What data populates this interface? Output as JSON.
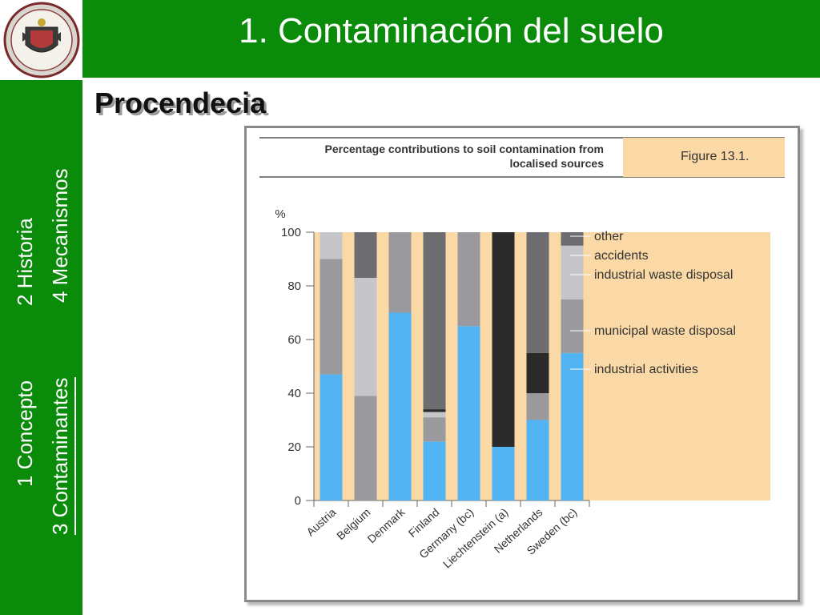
{
  "slide": {
    "title": "1.  Contaminación del suelo",
    "subtitle": "Procendecia"
  },
  "nav": {
    "items": [
      {
        "label": "1 Concepto",
        "active": false
      },
      {
        "label": "2  Historia",
        "active": false
      },
      {
        "label": "3 Contaminantes",
        "active": true
      },
      {
        "label": "4  Mecanismos",
        "active": false
      }
    ]
  },
  "colors": {
    "green": "#0a8c0a",
    "panel": "#fbd9a6",
    "industrial_activities": "#52b4f2",
    "municipal_waste_disposal": "#9a9a9e",
    "industrial_waste_disposal": "#c6c6ca",
    "accidents": "#2a2a2a",
    "other": "#6d6d71"
  },
  "logo": {
    "name": "university-crest-logo"
  },
  "chart_data": {
    "type": "bar",
    "stacked": true,
    "title": "Percentage contributions to soil contamination from localised sources",
    "figure_label": "Figure 13.1.",
    "ylabel": "%",
    "ylim": [
      0,
      100
    ],
    "yticks": [
      0,
      20,
      40,
      60,
      80,
      100
    ],
    "categories": [
      "Austria",
      "Belgium",
      "Denmark",
      "Finland",
      "Germany (bc)",
      "Liechtenstein (a)",
      "Netherlands",
      "Sweden (bc)"
    ],
    "series": [
      {
        "name": "industrial activities",
        "values": [
          47,
          0,
          70,
          22,
          65,
          20,
          30,
          55
        ]
      },
      {
        "name": "municipal waste disposal",
        "values": [
          43,
          39,
          30,
          9,
          35,
          0,
          10,
          20
        ]
      },
      {
        "name": "industrial waste disposal",
        "values": [
          10,
          44,
          0,
          2,
          0,
          0,
          0,
          20
        ]
      },
      {
        "name": "accidents",
        "values": [
          0,
          0,
          0,
          1,
          0,
          80,
          15,
          0
        ]
      },
      {
        "name": "other",
        "values": [
          0,
          17,
          0,
          66,
          0,
          0,
          45,
          5
        ]
      }
    ],
    "legend_order": [
      "other",
      "accidents",
      "industrial waste disposal",
      "municipal waste disposal",
      "industrial activities"
    ],
    "legend_placement": "right"
  }
}
